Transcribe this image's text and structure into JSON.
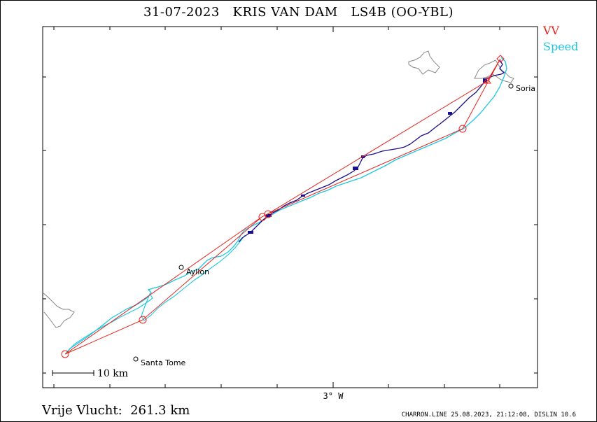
{
  "title": "31-07-2023   KRIS VAN DAM   LS4B (OO-YBL)",
  "legend": {
    "vv": "VV",
    "speed": "Speed"
  },
  "colors": {
    "vv": "#e8211c",
    "speed": "#1cc8e0",
    "track": "#1a0f8c",
    "terrain": "#888888"
  },
  "axis": {
    "x_label": "3° W"
  },
  "scale_bar": {
    "label": "10 km"
  },
  "towns": [
    {
      "name": "Soria"
    },
    {
      "name": "Ayllon"
    },
    {
      "name": "Santa Tome"
    }
  ],
  "footer": {
    "distance": "Vrije Vlucht:  261.3 km",
    "credit": "CHARRON.LINE 25.08.2023, 21:12:08, DISLIN 10.6"
  }
}
